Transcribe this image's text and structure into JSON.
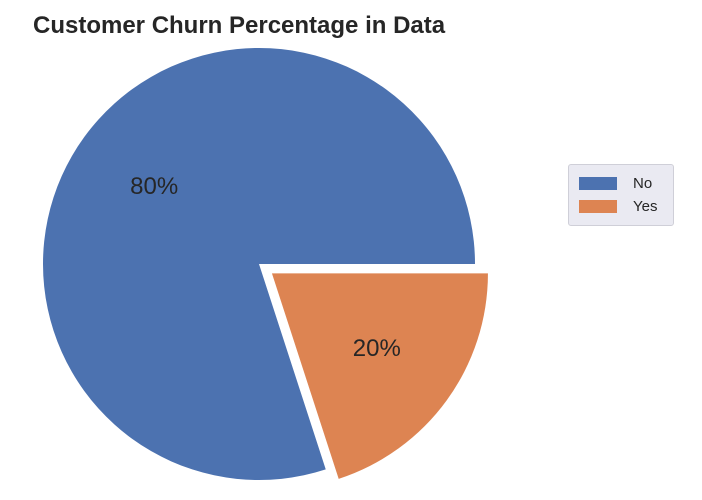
{
  "chart_data": {
    "type": "pie",
    "title": "Customer Churn Percentage in Data",
    "categories": [
      "No",
      "Yes"
    ],
    "values": [
      80,
      20
    ],
    "value_labels": [
      "80%",
      "20%"
    ],
    "colors": [
      "#4c72b0",
      "#dd8452"
    ],
    "exploded": [
      "Yes"
    ],
    "legend_position": "right"
  }
}
